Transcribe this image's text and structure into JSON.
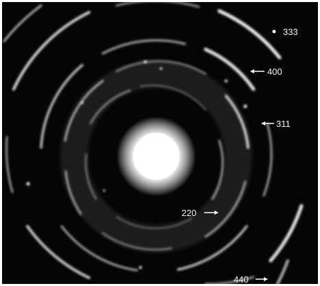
{
  "image": {
    "subject": "ring-diffraction-pattern",
    "background_color": "#050505",
    "spot_color": "#ffffff",
    "labels": {
      "ring_333": "333",
      "ring_400": "400",
      "ring_311": "311",
      "ring_220": "220",
      "ring_440": "440"
    }
  }
}
